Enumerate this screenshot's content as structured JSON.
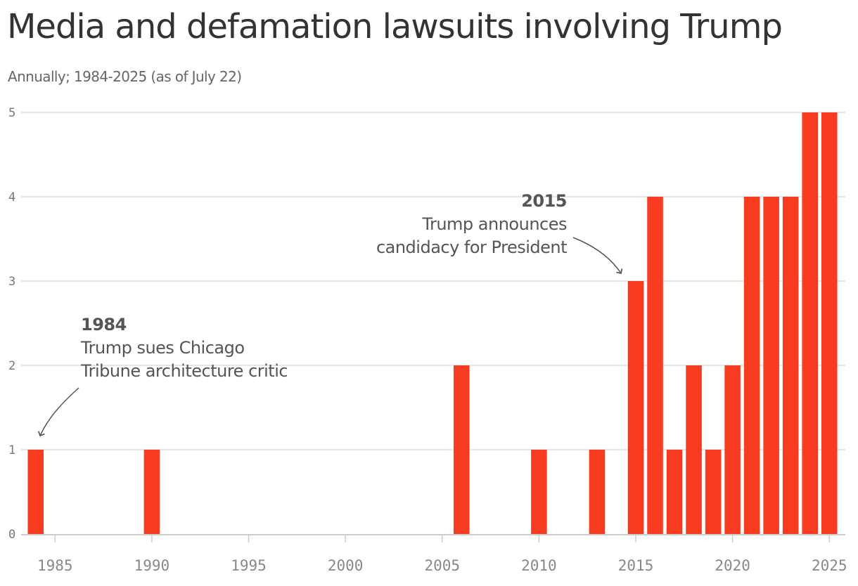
{
  "chart_data": {
    "type": "bar",
    "title": "Media and defamation lawsuits involving Trump",
    "subtitle": "Annually; 1984-2025 (as of July 22)",
    "xlabel": "",
    "ylabel": "",
    "x_ticks": [
      "1985",
      "1990",
      "1995",
      "2000",
      "2005",
      "2010",
      "2015",
      "2020",
      "2025"
    ],
    "y_ticks": [
      "0",
      "1",
      "2",
      "3",
      "4",
      "5"
    ],
    "ylim": [
      0,
      5
    ],
    "xlim": [
      1984,
      2025
    ],
    "grid": "horizontal",
    "bar_color": "#f73c21",
    "series": [
      {
        "x": [
          1984,
          1990,
          2006,
          2010,
          2013,
          2015,
          2016,
          2017,
          2018,
          2019,
          2020,
          2021,
          2022,
          2023,
          2024,
          2025
        ],
        "values": [
          1,
          1,
          2,
          1,
          1,
          3,
          4,
          1,
          2,
          1,
          2,
          4,
          4,
          4,
          5,
          5
        ]
      }
    ],
    "annotations": [
      {
        "x": 1984,
        "y": 1,
        "heading": "1984",
        "lines": [
          "Trump sues Chicago",
          "Tribune architecture critic"
        ],
        "align": "left"
      },
      {
        "x": 2015,
        "y": 3,
        "heading": "2015",
        "lines": [
          "Trump announces",
          "candidacy for President"
        ],
        "align": "right"
      }
    ]
  }
}
